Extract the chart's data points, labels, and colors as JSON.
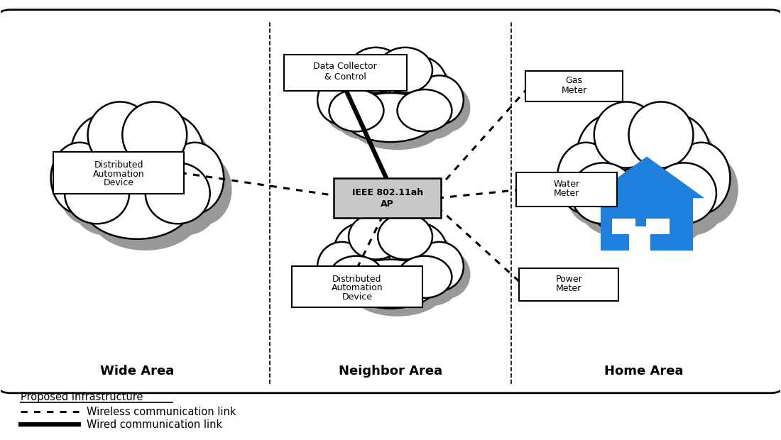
{
  "bg_color": "#ffffff",
  "house_color": "#1e7fdc",
  "ap_box_color": "#c8c8c8",
  "wide_area_label": "Wide Area",
  "neighbor_area_label": "Neighbor Area",
  "home_area_label": "Home Area",
  "ap_text1": "IEEE 802.11ah",
  "ap_text2": "AP",
  "dc_text1": "Data Collector",
  "dc_text2": "& Control",
  "dad_text1": "Distributed",
  "dad_text2": "Automation",
  "dad_text3": "Device",
  "gas_text1": "Gas",
  "gas_text2": "Meter",
  "water_text1": "Water",
  "water_text2": "Meter",
  "power_text1": "Power",
  "power_text2": "Meter",
  "legend_infra": "Proposed infrastructure",
  "legend_wireless": "Wireless communication link",
  "legend_wired": "Wired communication link"
}
